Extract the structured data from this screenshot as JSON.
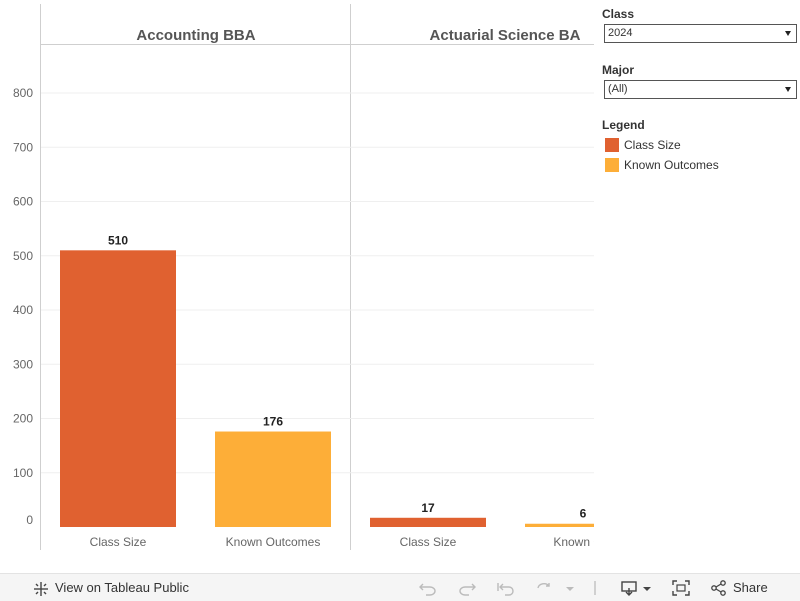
{
  "chart_data": {
    "type": "bar",
    "panels": [
      {
        "title": "Accounting BBA",
        "categories": [
          "Class Size",
          "Known Outcomes"
        ],
        "values": [
          510,
          176
        ]
      },
      {
        "title": "Actuarial Science BA",
        "categories": [
          "Class Size",
          "Known Out"
        ],
        "values": [
          17,
          6
        ]
      }
    ],
    "series_colors": {
      "Class Size": "#e06130",
      "Known Outcomes": "#fdae38"
    },
    "yticks": [
      0,
      100,
      200,
      300,
      400,
      500,
      600,
      700,
      800
    ],
    "ylim": [
      0,
      850
    ],
    "xlabel": "",
    "ylabel": "",
    "grid": true
  },
  "filters": {
    "class": {
      "label": "Class",
      "value": "2024"
    },
    "major": {
      "label": "Major",
      "value": "(All)"
    }
  },
  "legend": {
    "title": "Legend",
    "items": [
      {
        "label": "Class Size",
        "color": "#e06130"
      },
      {
        "label": "Known Outcomes",
        "color": "#fdae38"
      }
    ]
  },
  "toolbar": {
    "view_label": "View on Tableau Public",
    "share_label": "Share"
  }
}
